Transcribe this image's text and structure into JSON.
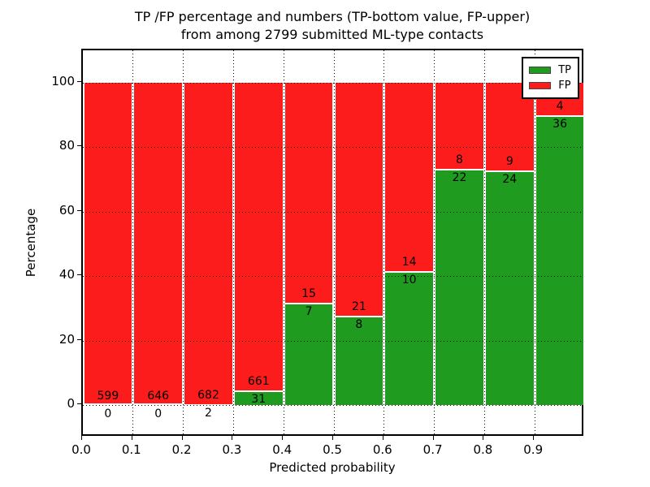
{
  "title_line1": "TP /FP percentage and numbers (TP-bottom value, FP-upper)",
  "title_line2": "from among 2799 submitted ML-type contacts",
  "chart_data": {
    "type": "bar",
    "stacked": true,
    "normalized_to_percent": true,
    "title": "TP /FP percentage and numbers (TP-bottom value, FP-upper) from among 2799 submitted ML-type contacts",
    "xlabel": "Predicted probability",
    "ylabel": "Percentage",
    "total_contacts": 2799,
    "xlim": [
      0.0,
      1.0
    ],
    "ylim": [
      -10,
      110
    ],
    "bin_width": 0.1,
    "categories": [
      "0.0-0.1",
      "0.1-0.2",
      "0.2-0.3",
      "0.3-0.4",
      "0.4-0.5",
      "0.5-0.6",
      "0.6-0.7",
      "0.7-0.8",
      "0.8-0.9",
      "0.9-1.0"
    ],
    "x_tick_labels": [
      "0.0",
      "0.1",
      "0.2",
      "0.3",
      "0.4",
      "0.5",
      "0.6",
      "0.7",
      "0.8",
      "0.9"
    ],
    "y_tick_values": [
      0,
      20,
      40,
      60,
      80,
      100
    ],
    "series": [
      {
        "name": "TP",
        "color": "#1f9b1f",
        "counts": [
          0,
          0,
          2,
          31,
          7,
          8,
          10,
          22,
          24,
          36
        ]
      },
      {
        "name": "FP",
        "color": "#fc1c1c",
        "counts": [
          599,
          646,
          682,
          661,
          15,
          21,
          14,
          8,
          9,
          4
        ]
      }
    ],
    "tp_percent_of_bin": [
      0.0,
      0.0,
      0.29,
      4.48,
      31.82,
      27.59,
      41.67,
      73.33,
      72.73,
      90.0
    ],
    "grid": true,
    "grid_style": "dotted",
    "legend": {
      "position": "upper right",
      "entries": [
        {
          "label": "TP",
          "color": "#1f9b1f"
        },
        {
          "label": "FP",
          "color": "#fc1c1c"
        }
      ]
    }
  }
}
